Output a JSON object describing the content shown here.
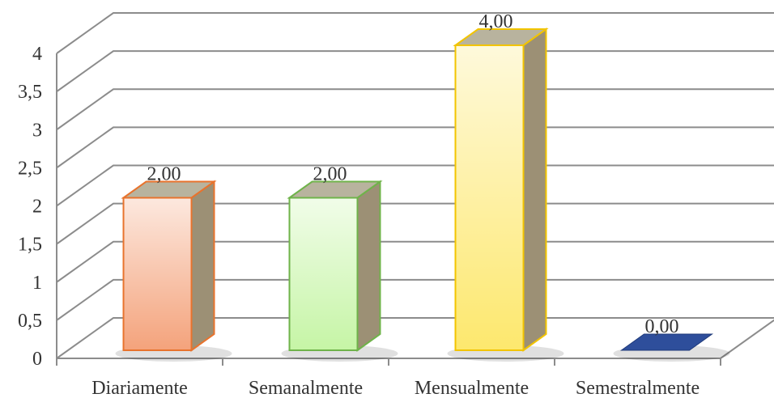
{
  "chart_data": {
    "type": "bar",
    "categories": [
      "Diariamente",
      "Semanalmente",
      "Mensualmente",
      "Semestralmente"
    ],
    "values": [
      2,
      2,
      4,
      0
    ],
    "value_labels": [
      "2,00",
      "2,00",
      "4,00",
      "0,00"
    ],
    "ylim": [
      0,
      4
    ],
    "y_ticks": [
      "0",
      "0,5",
      "1",
      "1,5",
      "2",
      "2,5",
      "3",
      "3,5",
      "4"
    ],
    "grid": true,
    "legend": "none",
    "three_d": true,
    "colors": {
      "Diariamente": "#f4a37c",
      "Semanalmente": "#c6f5a6",
      "Mensualmente": "#fde86e",
      "Semestralmente": "#2e4e9b"
    },
    "edge_colors": {
      "Diariamente": "#e8732d",
      "Semanalmente": "#6fb34a",
      "Mensualmente": "#f2c400",
      "Semestralmente": "#1f3a7a"
    }
  }
}
